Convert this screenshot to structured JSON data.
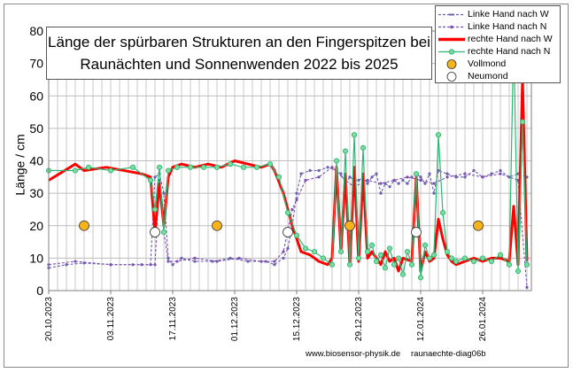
{
  "chart_data": {
    "type": "line",
    "title": "Länge der spürbaren Strukturen an den Fingerspitzen bei Raunächten  und Sonnenwenden 2022 bis 2025",
    "title_lines": [
      "Länge der spürbaren Strukturen an den Fingerspitzen bei",
      "Raunächten  und Sonnenwenden 2022 bis 2025"
    ],
    "ylabel": "Länge / cm",
    "xlabel": "",
    "ylim": [
      0,
      80
    ],
    "yticks": [
      0,
      10,
      20,
      30,
      40,
      50,
      60,
      70,
      80
    ],
    "xlim": [
      "2023-10-20",
      "2024-02-06"
    ],
    "xticks": [
      "20.10.2023",
      "03.11.2023",
      "17.11.2023",
      "01.12.2023",
      "15.12.2023",
      "29.12.2023",
      "12.01.2024",
      "26.01.2024"
    ],
    "grid": true,
    "legend_position": "top-right",
    "series": [
      {
        "name": "Linke Hand nach W",
        "color": "#6a5fb0",
        "style": "dashed-markers",
        "points": [
          [
            "2023-10-20",
            7
          ],
          [
            "2023-10-24",
            8
          ],
          [
            "2023-10-28",
            8.5
          ],
          [
            "2023-11-03",
            8
          ],
          [
            "2023-11-08",
            8
          ],
          [
            "2023-11-12",
            8
          ],
          [
            "2023-11-13",
            35
          ],
          [
            "2023-11-14",
            36
          ],
          [
            "2023-11-15",
            30
          ],
          [
            "2023-11-16",
            10
          ],
          [
            "2023-11-17",
            8
          ],
          [
            "2023-11-19",
            10
          ],
          [
            "2023-11-22",
            9
          ],
          [
            "2023-11-26",
            9
          ],
          [
            "2023-11-30",
            10
          ],
          [
            "2023-12-04",
            9
          ],
          [
            "2023-12-08",
            9
          ],
          [
            "2023-12-10",
            8
          ],
          [
            "2023-12-12",
            10
          ],
          [
            "2023-12-13",
            13
          ],
          [
            "2023-12-14",
            20
          ],
          [
            "2023-12-15",
            30
          ],
          [
            "2023-12-16",
            36
          ],
          [
            "2023-12-18",
            37
          ],
          [
            "2023-12-20",
            37
          ],
          [
            "2023-12-22",
            38
          ],
          [
            "2023-12-24",
            37
          ],
          [
            "2023-12-25",
            36
          ],
          [
            "2023-12-26",
            33
          ],
          [
            "2023-12-27",
            35
          ],
          [
            "2023-12-28",
            34
          ],
          [
            "2023-12-29",
            34
          ],
          [
            "2023-12-30",
            35
          ],
          [
            "2023-12-31",
            33
          ],
          [
            "2024-01-01",
            35
          ],
          [
            "2024-01-02",
            36
          ],
          [
            "2024-01-03",
            30
          ],
          [
            "2024-01-04",
            33
          ],
          [
            "2024-01-05",
            32
          ],
          [
            "2024-01-06",
            34
          ],
          [
            "2024-01-07",
            33
          ],
          [
            "2024-01-08",
            34
          ],
          [
            "2024-01-09",
            33
          ],
          [
            "2024-01-10",
            35
          ],
          [
            "2024-01-11",
            36
          ],
          [
            "2024-01-12",
            35
          ],
          [
            "2024-01-13",
            33
          ],
          [
            "2024-01-14",
            36
          ],
          [
            "2024-01-15",
            30
          ],
          [
            "2024-01-16",
            37
          ],
          [
            "2024-01-18",
            36
          ],
          [
            "2024-01-20",
            35
          ],
          [
            "2024-01-22",
            35
          ],
          [
            "2024-01-24",
            37
          ],
          [
            "2024-01-26",
            35
          ],
          [
            "2024-01-28",
            36
          ],
          [
            "2024-01-30",
            37
          ],
          [
            "2024-02-01",
            35
          ],
          [
            "2024-02-03",
            36
          ],
          [
            "2024-02-05",
            35
          ]
        ]
      },
      {
        "name": "Linke Hand nach N",
        "color": "#7a4fb0",
        "style": "dashed-markers",
        "points": [
          [
            "2023-10-20",
            8
          ],
          [
            "2023-10-26",
            9
          ],
          [
            "2023-11-03",
            8
          ],
          [
            "2023-11-10",
            8
          ],
          [
            "2023-11-13",
            8
          ],
          [
            "2023-11-14",
            34
          ],
          [
            "2023-11-15",
            18
          ],
          [
            "2023-11-16",
            9
          ],
          [
            "2023-11-18",
            9
          ],
          [
            "2023-11-22",
            10
          ],
          [
            "2023-11-27",
            9
          ],
          [
            "2023-12-02",
            10
          ],
          [
            "2023-12-07",
            9
          ],
          [
            "2023-12-10",
            9
          ],
          [
            "2023-12-12",
            12
          ],
          [
            "2023-12-14",
            25
          ],
          [
            "2023-12-15",
            28
          ],
          [
            "2023-12-17",
            34
          ],
          [
            "2023-12-20",
            35
          ],
          [
            "2023-12-23",
            38
          ],
          [
            "2023-12-26",
            34
          ],
          [
            "2023-12-28",
            32
          ],
          [
            "2023-12-31",
            34
          ],
          [
            "2024-01-03",
            33
          ],
          [
            "2024-01-06",
            34
          ],
          [
            "2024-01-09",
            35
          ],
          [
            "2024-01-12",
            34
          ],
          [
            "2024-01-15",
            33
          ],
          [
            "2024-01-18",
            35
          ],
          [
            "2024-01-22",
            36
          ],
          [
            "2024-01-26",
            35
          ],
          [
            "2024-01-30",
            36
          ],
          [
            "2024-02-03",
            34
          ],
          [
            "2024-02-05",
            1
          ]
        ]
      },
      {
        "name": "rechte Hand nach W",
        "color": "#ff0000",
        "style": "thick-line",
        "points": [
          [
            "2023-10-20",
            34
          ],
          [
            "2023-10-26",
            39
          ],
          [
            "2023-10-28",
            37
          ],
          [
            "2023-11-02",
            38
          ],
          [
            "2023-11-10",
            36
          ],
          [
            "2023-11-12",
            35
          ],
          [
            "2023-11-13",
            18
          ],
          [
            "2023-11-14",
            33
          ],
          [
            "2023-11-15",
            20
          ],
          [
            "2023-11-16",
            35
          ],
          [
            "2023-11-17",
            38
          ],
          [
            "2023-11-19",
            39
          ],
          [
            "2023-11-22",
            38
          ],
          [
            "2023-11-25",
            39
          ],
          [
            "2023-11-28",
            38
          ],
          [
            "2023-12-01",
            40
          ],
          [
            "2023-12-04",
            39
          ],
          [
            "2023-12-07",
            38
          ],
          [
            "2023-12-09",
            39
          ],
          [
            "2023-12-10",
            37
          ],
          [
            "2023-12-12",
            30
          ],
          [
            "2023-12-14",
            20
          ],
          [
            "2023-12-15",
            16
          ],
          [
            "2023-12-16",
            12
          ],
          [
            "2023-12-18",
            11
          ],
          [
            "2023-12-20",
            9
          ],
          [
            "2023-12-22",
            8
          ],
          [
            "2023-12-23",
            10
          ],
          [
            "2023-12-24",
            38
          ],
          [
            "2023-12-25",
            12
          ],
          [
            "2023-12-26",
            36
          ],
          [
            "2023-12-27",
            8
          ],
          [
            "2023-12-28",
            38
          ],
          [
            "2023-12-29",
            9
          ],
          [
            "2023-12-30",
            36
          ],
          [
            "2023-12-31",
            10
          ],
          [
            "2024-01-01",
            12
          ],
          [
            "2024-01-02",
            10
          ],
          [
            "2024-01-03",
            8
          ],
          [
            "2024-01-04",
            12
          ],
          [
            "2024-01-05",
            9
          ],
          [
            "2024-01-06",
            10
          ],
          [
            "2024-01-07",
            6
          ],
          [
            "2024-01-08",
            10
          ],
          [
            "2024-01-10",
            9
          ],
          [
            "2024-01-11",
            35
          ],
          [
            "2024-01-12",
            6
          ],
          [
            "2024-01-13",
            12
          ],
          [
            "2024-01-14",
            9
          ],
          [
            "2024-01-15",
            10
          ],
          [
            "2024-01-16",
            22
          ],
          [
            "2024-01-17",
            16
          ],
          [
            "2024-01-18",
            11
          ],
          [
            "2024-01-19",
            9
          ],
          [
            "2024-01-20",
            8
          ],
          [
            "2024-01-22",
            9
          ],
          [
            "2024-01-24",
            10
          ],
          [
            "2024-01-26",
            9
          ],
          [
            "2024-01-28",
            10
          ],
          [
            "2024-01-30",
            10
          ],
          [
            "2024-02-01",
            9
          ],
          [
            "2024-02-02",
            26
          ],
          [
            "2024-02-03",
            8
          ],
          [
            "2024-02-04",
            65
          ],
          [
            "2024-02-05",
            9
          ]
        ]
      },
      {
        "name": "rechte Hand nach N",
        "color": "#2bb673",
        "style": "line-markers",
        "points": [
          [
            "2023-10-20",
            37
          ],
          [
            "2023-10-26",
            37
          ],
          [
            "2023-10-29",
            38
          ],
          [
            "2023-11-03",
            37
          ],
          [
            "2023-11-08",
            38
          ],
          [
            "2023-11-12",
            34
          ],
          [
            "2023-11-13",
            25
          ],
          [
            "2023-11-14",
            38
          ],
          [
            "2023-11-15",
            18
          ],
          [
            "2023-11-16",
            37
          ],
          [
            "2023-11-18",
            38
          ],
          [
            "2023-11-21",
            38
          ],
          [
            "2023-11-24",
            38
          ],
          [
            "2023-11-27",
            38
          ],
          [
            "2023-11-30",
            39
          ],
          [
            "2023-12-03",
            38
          ],
          [
            "2023-12-06",
            38
          ],
          [
            "2023-12-09",
            39
          ],
          [
            "2023-12-11",
            35
          ],
          [
            "2023-12-13",
            24
          ],
          [
            "2023-12-15",
            17
          ],
          [
            "2023-12-17",
            13
          ],
          [
            "2023-12-19",
            12
          ],
          [
            "2023-12-21",
            10
          ],
          [
            "2023-12-23",
            8
          ],
          [
            "2023-12-24",
            40
          ],
          [
            "2023-12-25",
            12
          ],
          [
            "2023-12-26",
            43
          ],
          [
            "2023-12-27",
            8
          ],
          [
            "2023-12-28",
            48
          ],
          [
            "2023-12-29",
            10
          ],
          [
            "2023-12-30",
            44
          ],
          [
            "2023-12-31",
            12
          ],
          [
            "2024-01-01",
            14
          ],
          [
            "2024-01-02",
            9
          ],
          [
            "2024-01-03",
            11
          ],
          [
            "2024-01-04",
            7
          ],
          [
            "2024-01-05",
            13
          ],
          [
            "2024-01-06",
            8
          ],
          [
            "2024-01-07",
            10
          ],
          [
            "2024-01-08",
            5
          ],
          [
            "2024-01-09",
            12
          ],
          [
            "2024-01-10",
            8
          ],
          [
            "2024-01-11",
            36
          ],
          [
            "2024-01-12",
            4
          ],
          [
            "2024-01-13",
            14
          ],
          [
            "2024-01-14",
            10
          ],
          [
            "2024-01-15",
            11
          ],
          [
            "2024-01-16",
            48
          ],
          [
            "2024-01-17",
            24
          ],
          [
            "2024-01-18",
            12
          ],
          [
            "2024-01-19",
            10
          ],
          [
            "2024-01-20",
            9
          ],
          [
            "2024-01-22",
            10
          ],
          [
            "2024-01-24",
            9
          ],
          [
            "2024-01-26",
            10
          ],
          [
            "2024-01-28",
            9
          ],
          [
            "2024-01-30",
            11
          ],
          [
            "2024-02-01",
            8
          ],
          [
            "2024-02-02",
            78
          ],
          [
            "2024-02-03",
            6
          ],
          [
            "2024-02-04",
            52
          ],
          [
            "2024-02-05",
            8
          ]
        ]
      }
    ],
    "vollmond": {
      "name": "Vollmond",
      "color": "#f7b31b",
      "value": 20,
      "dates": [
        "2023-10-28",
        "2023-11-27",
        "2023-12-27",
        "2024-01-25"
      ]
    },
    "neumond": {
      "name": "Neumond",
      "color": "#ffffff",
      "value": 18,
      "dates": [
        "2023-11-13",
        "2023-12-13",
        "2024-01-11"
      ]
    }
  },
  "footer": {
    "website": "www.biosensor-physik.de",
    "diagram_id": "raunaechte-diag06b"
  }
}
